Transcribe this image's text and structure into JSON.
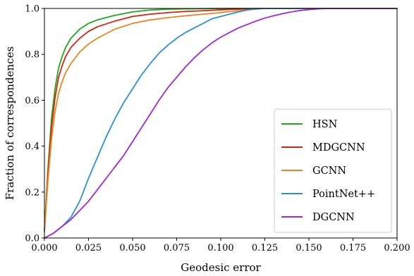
{
  "chart_data": {
    "type": "line",
    "xlabel": "Geodesic error",
    "ylabel": "Fraction of correspondences",
    "xlim": [
      0.0,
      0.2
    ],
    "ylim": [
      0.0,
      1.0
    ],
    "xticks": [
      "0.000",
      "0.025",
      "0.050",
      "0.075",
      "0.100",
      "0.125",
      "0.150",
      "0.175",
      "0.200"
    ],
    "yticks": [
      "0.0",
      "0.2",
      "0.4",
      "0.6",
      "0.8",
      "1.0"
    ],
    "grid": false,
    "legend_position": "lower-right",
    "series": [
      {
        "name": "HSN",
        "color": "#1aab1a",
        "x": [
          0,
          0.002,
          0.004,
          0.006,
          0.008,
          0.01,
          0.012,
          0.015,
          0.02,
          0.025,
          0.03,
          0.04,
          0.05,
          0.06,
          0.07,
          0.08,
          0.09,
          0.1,
          0.125,
          0.15,
          0.175,
          0.2
        ],
        "y": [
          0.03,
          0.3,
          0.52,
          0.65,
          0.74,
          0.79,
          0.83,
          0.87,
          0.91,
          0.935,
          0.95,
          0.97,
          0.985,
          0.993,
          0.997,
          0.998,
          0.999,
          1.0,
          1.0,
          1.0,
          1.0,
          1.0
        ]
      },
      {
        "name": "MDGCNN",
        "color": "#d62412",
        "x": [
          0,
          0.002,
          0.004,
          0.006,
          0.008,
          0.01,
          0.012,
          0.015,
          0.02,
          0.025,
          0.03,
          0.04,
          0.05,
          0.06,
          0.07,
          0.08,
          0.09,
          0.1,
          0.11,
          0.12,
          0.125,
          0.15,
          0.175,
          0.2
        ],
        "y": [
          0.03,
          0.28,
          0.48,
          0.61,
          0.7,
          0.75,
          0.79,
          0.83,
          0.87,
          0.9,
          0.92,
          0.945,
          0.965,
          0.975,
          0.982,
          0.987,
          0.99,
          0.994,
          0.997,
          0.999,
          1.0,
          1.0,
          1.0,
          1.0
        ]
      },
      {
        "name": "GCNN",
        "color": "#ec8521",
        "x": [
          0,
          0.002,
          0.004,
          0.006,
          0.008,
          0.01,
          0.012,
          0.015,
          0.02,
          0.025,
          0.03,
          0.04,
          0.05,
          0.06,
          0.07,
          0.08,
          0.09,
          0.1,
          0.11,
          0.12,
          0.125,
          0.15,
          0.175,
          0.2
        ],
        "y": [
          0.03,
          0.25,
          0.43,
          0.55,
          0.63,
          0.68,
          0.72,
          0.76,
          0.81,
          0.845,
          0.87,
          0.91,
          0.935,
          0.95,
          0.96,
          0.968,
          0.975,
          0.982,
          0.99,
          0.997,
          1.0,
          1.0,
          1.0,
          1.0
        ]
      },
      {
        "name": "PointNet++",
        "color": "#2a90da",
        "x": [
          0,
          0.005,
          0.01,
          0.015,
          0.02,
          0.025,
          0.03,
          0.035,
          0.04,
          0.045,
          0.05,
          0.055,
          0.06,
          0.065,
          0.07,
          0.075,
          0.08,
          0.085,
          0.09,
          0.095,
          0.1,
          0.105,
          0.11,
          0.115,
          0.12,
          0.125,
          0.13,
          0.15,
          0.175,
          0.2
        ],
        "y": [
          0.0,
          0.02,
          0.05,
          0.09,
          0.16,
          0.26,
          0.35,
          0.44,
          0.52,
          0.59,
          0.65,
          0.71,
          0.76,
          0.805,
          0.84,
          0.87,
          0.895,
          0.915,
          0.935,
          0.955,
          0.965,
          0.975,
          0.985,
          0.993,
          0.998,
          1.0,
          1.0,
          1.0,
          1.0,
          1.0
        ]
      },
      {
        "name": "DGCNN",
        "color": "#a326db",
        "x": [
          0,
          0.005,
          0.01,
          0.015,
          0.02,
          0.025,
          0.03,
          0.035,
          0.04,
          0.045,
          0.05,
          0.055,
          0.06,
          0.065,
          0.07,
          0.075,
          0.08,
          0.085,
          0.09,
          0.095,
          0.1,
          0.105,
          0.11,
          0.115,
          0.12,
          0.125,
          0.13,
          0.135,
          0.14,
          0.145,
          0.15,
          0.155,
          0.16,
          0.175,
          0.2
        ],
        "y": [
          0.0,
          0.02,
          0.05,
          0.08,
          0.12,
          0.16,
          0.21,
          0.26,
          0.31,
          0.36,
          0.42,
          0.48,
          0.54,
          0.6,
          0.655,
          0.7,
          0.745,
          0.785,
          0.82,
          0.85,
          0.875,
          0.895,
          0.915,
          0.93,
          0.945,
          0.958,
          0.968,
          0.977,
          0.985,
          0.991,
          0.995,
          0.998,
          1.0,
          1.0,
          1.0
        ]
      }
    ]
  }
}
